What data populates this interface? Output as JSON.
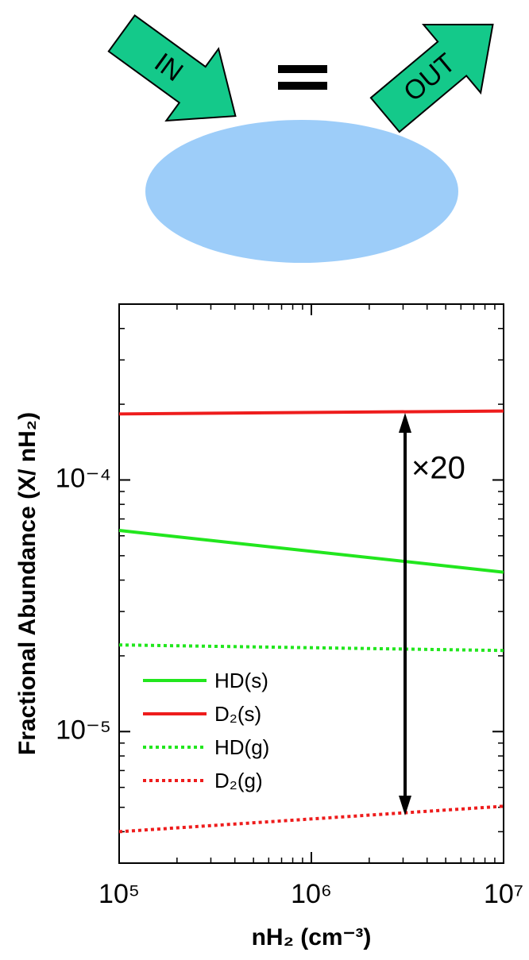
{
  "diagram": {
    "in_label": "IN",
    "out_label": "OUT"
  },
  "chart_data": {
    "type": "line",
    "xlabel": "nH₂ (cm⁻³)",
    "ylabel": "Fractional Abundance (X/ nH₂)",
    "annotation": "×20",
    "x": [
      100000,
      10000000
    ],
    "xlim": [
      100000,
      10000000
    ],
    "ylim": [
      3e-06,
      0.0005
    ],
    "xscale": "log",
    "yscale": "log",
    "xticks": [
      {
        "value": 100000,
        "label": "10⁵"
      },
      {
        "value": 1000000,
        "label": "10⁶"
      },
      {
        "value": 10000000,
        "label": "10⁷"
      }
    ],
    "yticks": [
      {
        "value": 1e-05,
        "label": "10⁻⁵"
      },
      {
        "value": 0.0001,
        "label": "10⁻⁴"
      }
    ],
    "legend": "lower left",
    "series": [
      {
        "name": "HD(s)",
        "color": "#22e61e",
        "style": "solid",
        "values": [
          6.3e-05,
          4.3e-05
        ]
      },
      {
        "name": "D₂(s)",
        "color": "#ee1c1c",
        "style": "solid",
        "values": [
          0.000183,
          0.000188
        ]
      },
      {
        "name": "HD(g)",
        "color": "#22e61e",
        "style": "dotted",
        "values": [
          2.21e-05,
          2.1e-05
        ]
      },
      {
        "name": "D₂(g)",
        "color": "#ee1c1c",
        "style": "dotted",
        "values": [
          4e-06,
          5.05e-06
        ]
      }
    ]
  }
}
